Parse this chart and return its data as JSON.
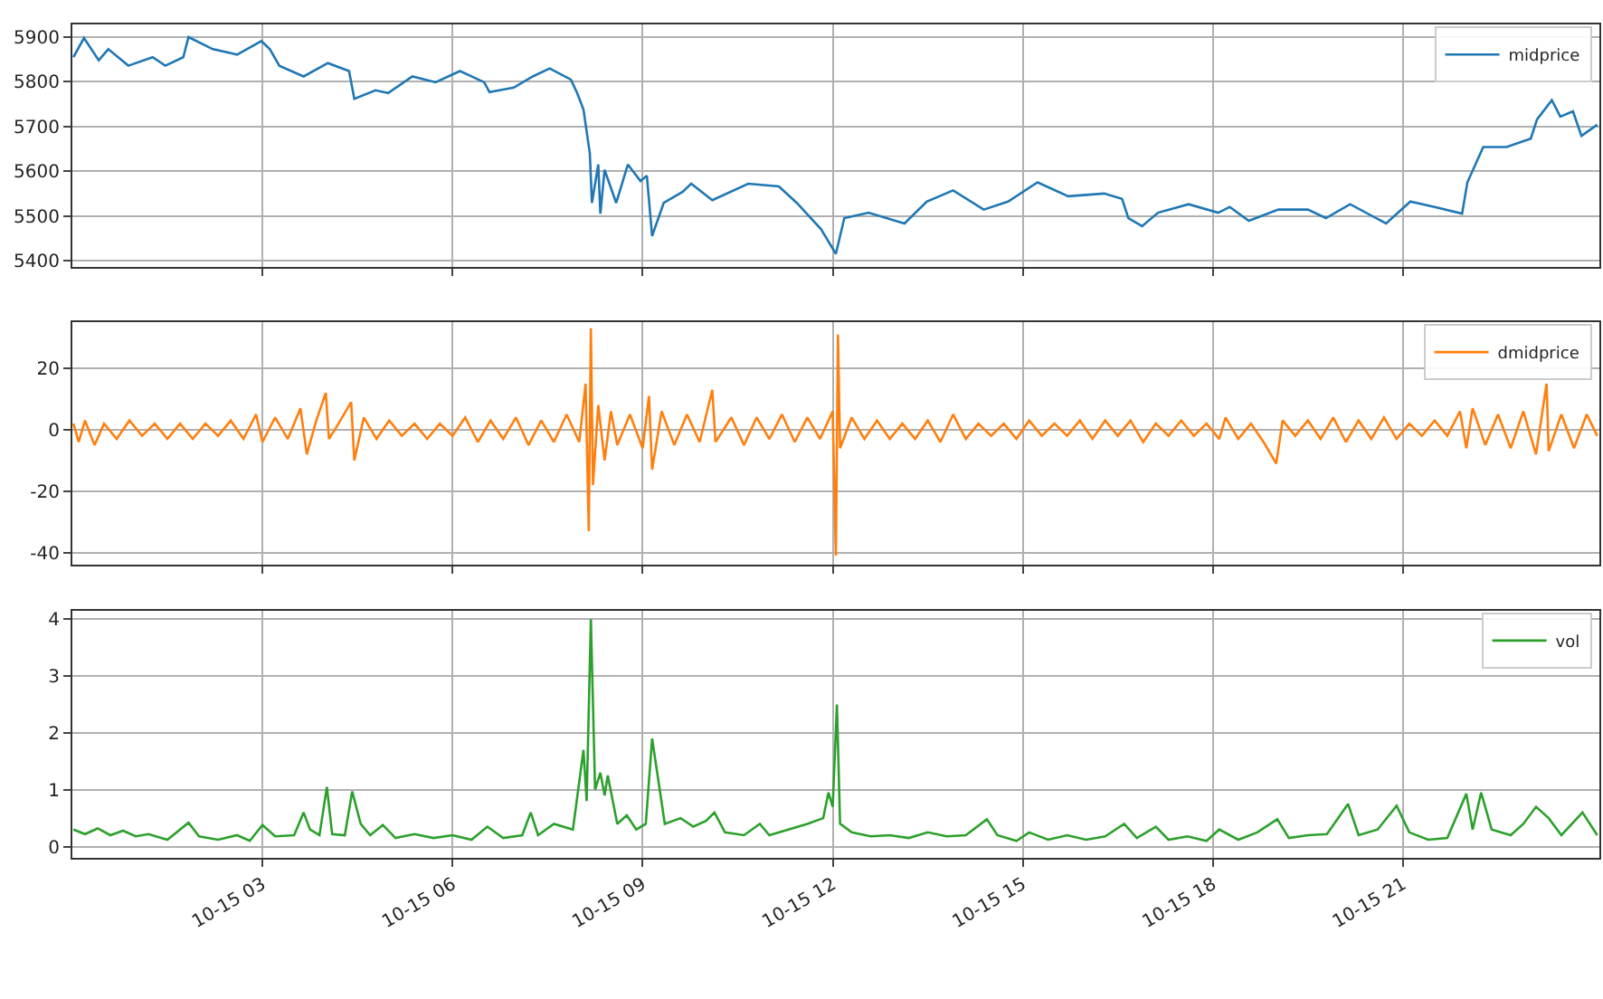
{
  "chart_data": [
    {
      "type": "line",
      "tick_labels": "y",
      "grid": true,
      "legend": "top right",
      "xlim": [
        "--10-15T00:00",
        "--10-16T00:06"
      ],
      "ylim": [
        5385,
        5928
      ],
      "yticks": [
        5400,
        5500,
        5600,
        5700,
        5800,
        5900
      ],
      "xticks": [
        {
          "value": "--10-15T03:00",
          "label": "10-15 03"
        },
        {
          "value": "--10-15T06:00",
          "label": "10-15 06"
        },
        {
          "value": "--10-15T09:00",
          "label": "10-15 09"
        },
        {
          "value": "--10-15T12:00",
          "label": "10-15 12"
        },
        {
          "value": "--10-15T15:00",
          "label": "10-15 15"
        },
        {
          "value": "--10-15T18:00",
          "label": "10-15 18"
        },
        {
          "value": "--10-15T21:00",
          "label": "10-15 21"
        }
      ],
      "x": [
        "--10-15T00:01",
        "--10-15T00:11",
        "--10-15T00:25",
        "--10-15T00:34",
        "--10-15T00:53",
        "--10-15T01:16",
        "--10-15T01:28",
        "--10-15T01:45",
        "--10-15T01:50",
        "--10-15T02:13",
        "--10-15T02:36",
        "--10-15T02:59",
        "--10-15T03:07",
        "--10-15T03:16",
        "--10-15T03:39",
        "--10-15T04:02",
        "--10-15T04:22",
        "--10-15T04:27",
        "--10-15T04:47",
        "--10-15T04:59",
        "--10-15T05:22",
        "--10-15T05:44",
        "--10-15T06:07",
        "--10-15T06:30",
        "--10-15T06:35",
        "--10-15T06:58",
        "--10-15T07:16",
        "--10-15T07:32",
        "--10-15T07:52",
        "--10-15T07:58",
        "--10-15T08:04",
        "--10-15T08:10",
        "--10-15T08:12",
        "--10-15T08:18",
        "--10-15T08:20",
        "--10-15T08:24",
        "--10-15T08:35",
        "--10-15T08:46",
        "--10-15T08:58",
        "--10-15T09:04",
        "--10-15T09:09",
        "--10-15T09:20",
        "--10-15T09:38",
        "--10-15T09:46",
        "--10-15T10:06",
        "--10-15T10:40",
        "--10-15T11:09",
        "--10-15T11:26",
        "--10-15T11:49",
        "--10-15T12:03",
        "--10-15T12:11",
        "--10-15T12:34",
        "--10-15T13:08",
        "--10-15T13:29",
        "--10-15T13:54",
        "--10-15T14:23",
        "--10-15T14:46",
        "--10-15T15:14",
        "--10-15T15:43",
        "--10-15T16:17",
        "--10-15T16:34",
        "--10-15T16:40",
        "--10-15T16:53",
        "--10-15T17:08",
        "--10-15T17:37",
        "--10-15T18:05",
        "--10-15T18:16",
        "--10-15T18:34",
        "--10-15T19:02",
        "--10-15T19:30",
        "--10-15T19:47",
        "--10-15T20:10",
        "--10-15T20:44",
        "--10-15T21:07",
        "--10-15T21:30",
        "--10-15T21:56",
        "--10-15T22:01",
        "--10-15T22:16",
        "--10-15T22:38",
        "--10-15T23:01",
        "--10-15T23:07",
        "--10-15T23:21",
        "--10-15T23:29",
        "--10-15T23:41",
        "--10-15T23:49",
        "--10-16T00:04"
      ],
      "series": [
        {
          "name": "midprice",
          "color": "#1f77b4",
          "values": [
            5855,
            5898,
            5848,
            5873,
            5836,
            5855,
            5836,
            5855,
            5900,
            5873,
            5861,
            5891,
            5873,
            5836,
            5812,
            5842,
            5824,
            5762,
            5781,
            5775,
            5812,
            5799,
            5824,
            5799,
            5777,
            5787,
            5812,
            5830,
            5805,
            5775,
            5738,
            5640,
            5529,
            5615,
            5505,
            5603,
            5529,
            5615,
            5578,
            5590,
            5455,
            5529,
            5554,
            5572,
            5535,
            5572,
            5566,
            5529,
            5470,
            5415,
            5495,
            5507,
            5483,
            5532,
            5557,
            5514,
            5532,
            5575,
            5544,
            5550,
            5538,
            5495,
            5477,
            5507,
            5526,
            5507,
            5520,
            5489,
            5514,
            5514,
            5495,
            5526,
            5483,
            5532,
            5520,
            5505,
            5575,
            5654,
            5654,
            5673,
            5716,
            5759,
            5722,
            5734,
            5679,
            5704
          ]
        }
      ]
    },
    {
      "type": "line",
      "tick_labels": "y",
      "grid": true,
      "legend": "top right",
      "xlim": [
        "--10-15T00:00",
        "--10-16T00:06"
      ],
      "ylim": [
        -44,
        35
      ],
      "yticks": [
        -40,
        -20,
        0,
        20
      ],
      "xticks": [
        {
          "value": "--10-15T03:00",
          "label": "10-15 03"
        },
        {
          "value": "--10-15T06:00",
          "label": "10-15 06"
        },
        {
          "value": "--10-15T09:00",
          "label": "10-15 09"
        },
        {
          "value": "--10-15T12:00",
          "label": "10-15 12"
        },
        {
          "value": "--10-15T15:00",
          "label": "10-15 15"
        },
        {
          "value": "--10-15T18:00",
          "label": "10-15 18"
        },
        {
          "value": "--10-15T21:00",
          "label": "10-15 21"
        }
      ],
      "x": [
        "--10-15T00:01",
        "--10-15T00:06",
        "--10-15T00:12",
        "--10-15T00:21",
        "--10-15T00:30",
        "--10-15T00:42",
        "--10-15T00:54",
        "--10-15T01:06",
        "--10-15T01:18",
        "--10-15T01:30",
        "--10-15T01:42",
        "--10-15T01:54",
        "--10-15T02:06",
        "--10-15T02:18",
        "--10-15T02:30",
        "--10-15T02:42",
        "--10-15T02:54",
        "--10-15T03:00",
        "--10-15T03:12",
        "--10-15T03:24",
        "--10-15T03:36",
        "--10-15T03:42",
        "--10-15T03:51",
        "--10-15T04:00",
        "--10-15T04:03",
        "--10-15T04:12",
        "--10-15T04:24",
        "--10-15T04:27",
        "--10-15T04:36",
        "--10-15T04:48",
        "--10-15T05:00",
        "--10-15T05:12",
        "--10-15T05:24",
        "--10-15T05:36",
        "--10-15T05:48",
        "--10-15T06:00",
        "--10-15T06:12",
        "--10-15T06:24",
        "--10-15T06:36",
        "--10-15T06:48",
        "--10-15T07:00",
        "--10-15T07:12",
        "--10-15T07:24",
        "--10-15T07:36",
        "--10-15T07:48",
        "--10-15T08:00",
        "--10-15T08:06",
        "--10-15T08:09",
        "--10-15T08:11",
        "--10-15T08:13",
        "--10-15T08:18",
        "--10-15T08:24",
        "--10-15T08:30",
        "--10-15T08:36",
        "--10-15T08:48",
        "--10-15T09:00",
        "--10-15T09:06",
        "--10-15T09:09",
        "--10-15T09:18",
        "--10-15T09:30",
        "--10-15T09:42",
        "--10-15T09:54",
        "--10-15T10:06",
        "--10-15T10:09",
        "--10-15T10:24",
        "--10-15T10:36",
        "--10-15T10:48",
        "--10-15T11:00",
        "--10-15T11:12",
        "--10-15T11:24",
        "--10-15T11:36",
        "--10-15T11:48",
        "--10-15T12:00",
        "--10-15T12:03",
        "--10-15T12:05",
        "--10-15T12:07",
        "--10-15T12:18",
        "--10-15T12:30",
        "--10-15T12:42",
        "--10-15T12:54",
        "--10-15T13:06",
        "--10-15T13:18",
        "--10-15T13:30",
        "--10-15T13:42",
        "--10-15T13:54",
        "--10-15T14:06",
        "--10-15T14:18",
        "--10-15T14:30",
        "--10-15T14:42",
        "--10-15T14:54",
        "--10-15T15:06",
        "--10-15T15:18",
        "--10-15T15:30",
        "--10-15T15:42",
        "--10-15T15:54",
        "--10-15T16:06",
        "--10-15T16:18",
        "--10-15T16:30",
        "--10-15T16:42",
        "--10-15T16:54",
        "--10-15T17:06",
        "--10-15T17:18",
        "--10-15T17:30",
        "--10-15T17:42",
        "--10-15T17:54",
        "--10-15T18:06",
        "--10-15T18:12",
        "--10-15T18:24",
        "--10-15T18:36",
        "--10-15T18:48",
        "--10-15T19:00",
        "--10-15T19:06",
        "--10-15T19:18",
        "--10-15T19:30",
        "--10-15T19:42",
        "--10-15T19:54",
        "--10-15T20:06",
        "--10-15T20:18",
        "--10-15T20:30",
        "--10-15T20:42",
        "--10-15T20:54",
        "--10-15T21:06",
        "--10-15T21:18",
        "--10-15T21:30",
        "--10-15T21:42",
        "--10-15T21:54",
        "--10-15T22:00",
        "--10-15T22:06",
        "--10-15T22:18",
        "--10-15T22:30",
        "--10-15T22:42",
        "--10-15T22:54",
        "--10-15T23:06",
        "--10-15T23:16",
        "--10-15T23:18",
        "--10-15T23:30",
        "--10-15T23:42",
        "--10-15T23:54",
        "--10-16T00:04"
      ],
      "series": [
        {
          "name": "dmidprice",
          "color": "#ff7f0e",
          "values": [
            2,
            -4,
            3,
            -5,
            2,
            -3,
            3,
            -2,
            2,
            -3,
            2,
            -3,
            2,
            -2,
            3,
            -3,
            5,
            -4,
            4,
            -3,
            7,
            -8,
            3,
            12,
            -3,
            2,
            9,
            -10,
            4,
            -3,
            3,
            -2,
            2,
            -3,
            2,
            -2,
            4,
            -4,
            3,
            -3,
            4,
            -5,
            3,
            -4,
            5,
            -4,
            15,
            -33,
            33,
            -18,
            8,
            -10,
            6,
            -5,
            5,
            -6,
            11,
            -13,
            6,
            -5,
            5,
            -4,
            13,
            -4,
            4,
            -5,
            4,
            -3,
            5,
            -4,
            4,
            -3,
            6,
            -41,
            31,
            -6,
            4,
            -3,
            3,
            -3,
            2,
            -3,
            3,
            -4,
            5,
            -3,
            2,
            -2,
            2,
            -3,
            3,
            -2,
            2,
            -2,
            3,
            -3,
            3,
            -2,
            3,
            -4,
            2,
            -2,
            3,
            -2,
            2,
            -3,
            4,
            -3,
            2,
            -4,
            -11,
            3,
            -2,
            3,
            -3,
            4,
            -4,
            3,
            -3,
            4,
            -3,
            2,
            -2,
            3,
            -2,
            6,
            -6,
            7,
            -5,
            5,
            -6,
            6,
            -8,
            15,
            -7,
            5,
            -6,
            5,
            -2
          ]
        }
      ]
    },
    {
      "type": "line",
      "grid": true,
      "legend": "top right",
      "xlim": [
        "--10-15T00:00",
        "--10-16T00:06"
      ],
      "ylim": [
        -0.2,
        4.15
      ],
      "yticks": [
        0,
        1,
        2,
        3,
        4
      ],
      "xticks": [
        {
          "value": "--10-15T03:00",
          "label": "10-15 03"
        },
        {
          "value": "--10-15T06:00",
          "label": "10-15 06"
        },
        {
          "value": "--10-15T09:00",
          "label": "10-15 09"
        },
        {
          "value": "--10-15T12:00",
          "label": "10-15 12"
        },
        {
          "value": "--10-15T15:00",
          "label": "10-15 15"
        },
        {
          "value": "--10-15T18:00",
          "label": "10-15 18"
        },
        {
          "value": "--10-15T21:00",
          "label": "10-15 21"
        }
      ],
      "x": [
        "--10-15T00:01",
        "--10-15T00:12",
        "--10-15T00:24",
        "--10-15T00:36",
        "--10-15T00:48",
        "--10-15T01:00",
        "--10-15T01:12",
        "--10-15T01:30",
        "--10-15T01:50",
        "--10-15T02:00",
        "--10-15T02:18",
        "--10-15T02:36",
        "--10-15T02:48",
        "--10-15T03:00",
        "--10-15T03:12",
        "--10-15T03:30",
        "--10-15T03:39",
        "--10-15T03:45",
        "--10-15T03:54",
        "--10-15T04:01",
        "--10-15T04:06",
        "--10-15T04:18",
        "--10-15T04:25",
        "--10-15T04:33",
        "--10-15T04:42",
        "--10-15T04:54",
        "--10-15T05:06",
        "--10-15T05:24",
        "--10-15T05:42",
        "--10-15T06:00",
        "--10-15T06:18",
        "--10-15T06:33",
        "--10-15T06:48",
        "--10-15T07:06",
        "--10-15T07:14",
        "--10-15T07:21",
        "--10-15T07:36",
        "--10-15T07:54",
        "--10-15T08:04",
        "--10-15T08:07",
        "--10-15T08:11",
        "--10-15T08:15",
        "--10-15T08:20",
        "--10-15T08:24",
        "--10-15T08:27",
        "--10-15T08:36",
        "--10-15T08:45",
        "--10-15T08:54",
        "--10-15T09:03",
        "--10-15T09:09",
        "--10-15T09:15",
        "--10-15T09:21",
        "--10-15T09:36",
        "--10-15T09:48",
        "--10-15T10:00",
        "--10-15T10:08",
        "--10-15T10:18",
        "--10-15T10:36",
        "--10-15T10:51",
        "--10-15T11:00",
        "--10-15T11:18",
        "--10-15T11:36",
        "--10-15T11:51",
        "--10-15T11:56",
        "--10-15T12:00",
        "--10-15T12:04",
        "--10-15T12:07",
        "--10-15T12:18",
        "--10-15T12:36",
        "--10-15T12:54",
        "--10-15T13:12",
        "--10-15T13:30",
        "--10-15T13:48",
        "--10-15T14:06",
        "--10-15T14:26",
        "--10-15T14:36",
        "--10-15T14:54",
        "--10-15T15:06",
        "--10-15T15:24",
        "--10-15T15:42",
        "--10-15T16:00",
        "--10-15T16:18",
        "--10-15T16:36",
        "--10-15T16:48",
        "--10-15T17:06",
        "--10-15T17:18",
        "--10-15T17:36",
        "--10-15T17:54",
        "--10-15T18:06",
        "--10-15T18:24",
        "--10-15T18:42",
        "--10-15T19:01",
        "--10-15T19:12",
        "--10-15T19:30",
        "--10-15T19:48",
        "--10-15T20:08",
        "--10-15T20:18",
        "--10-15T20:36",
        "--10-15T20:54",
        "--10-15T21:06",
        "--10-15T21:24",
        "--10-15T21:42",
        "--10-15T22:00",
        "--10-15T22:06",
        "--10-15T22:14",
        "--10-15T22:24",
        "--10-15T22:42",
        "--10-15T22:54",
        "--10-15T23:06",
        "--10-15T23:18",
        "--10-15T23:30",
        "--10-15T23:50",
        "--10-16T00:04"
      ],
      "series": [
        {
          "name": "vol",
          "color": "#2ca02c",
          "values": [
            0.3,
            0.22,
            0.32,
            0.2,
            0.28,
            0.18,
            0.22,
            0.12,
            0.42,
            0.18,
            0.12,
            0.2,
            0.1,
            0.38,
            0.18,
            0.2,
            0.6,
            0.3,
            0.2,
            1.05,
            0.22,
            0.2,
            0.97,
            0.4,
            0.2,
            0.38,
            0.15,
            0.22,
            0.15,
            0.2,
            0.12,
            0.35,
            0.15,
            0.2,
            0.6,
            0.2,
            0.4,
            0.3,
            1.7,
            0.8,
            4.0,
            1.0,
            1.3,
            0.9,
            1.25,
            0.4,
            0.55,
            0.3,
            0.4,
            1.9,
            1.15,
            0.4,
            0.5,
            0.35,
            0.45,
            0.6,
            0.25,
            0.2,
            0.4,
            0.2,
            0.3,
            0.4,
            0.5,
            0.95,
            0.7,
            2.5,
            0.4,
            0.25,
            0.18,
            0.2,
            0.15,
            0.25,
            0.18,
            0.2,
            0.48,
            0.2,
            0.1,
            0.25,
            0.12,
            0.2,
            0.12,
            0.18,
            0.4,
            0.15,
            0.35,
            0.12,
            0.18,
            0.1,
            0.3,
            0.12,
            0.25,
            0.48,
            0.15,
            0.2,
            0.22,
            0.75,
            0.2,
            0.3,
            0.72,
            0.25,
            0.12,
            0.15,
            0.93,
            0.3,
            0.95,
            0.3,
            0.2,
            0.4,
            0.7,
            0.5,
            0.2,
            0.6,
            0.2
          ]
        }
      ]
    }
  ]
}
